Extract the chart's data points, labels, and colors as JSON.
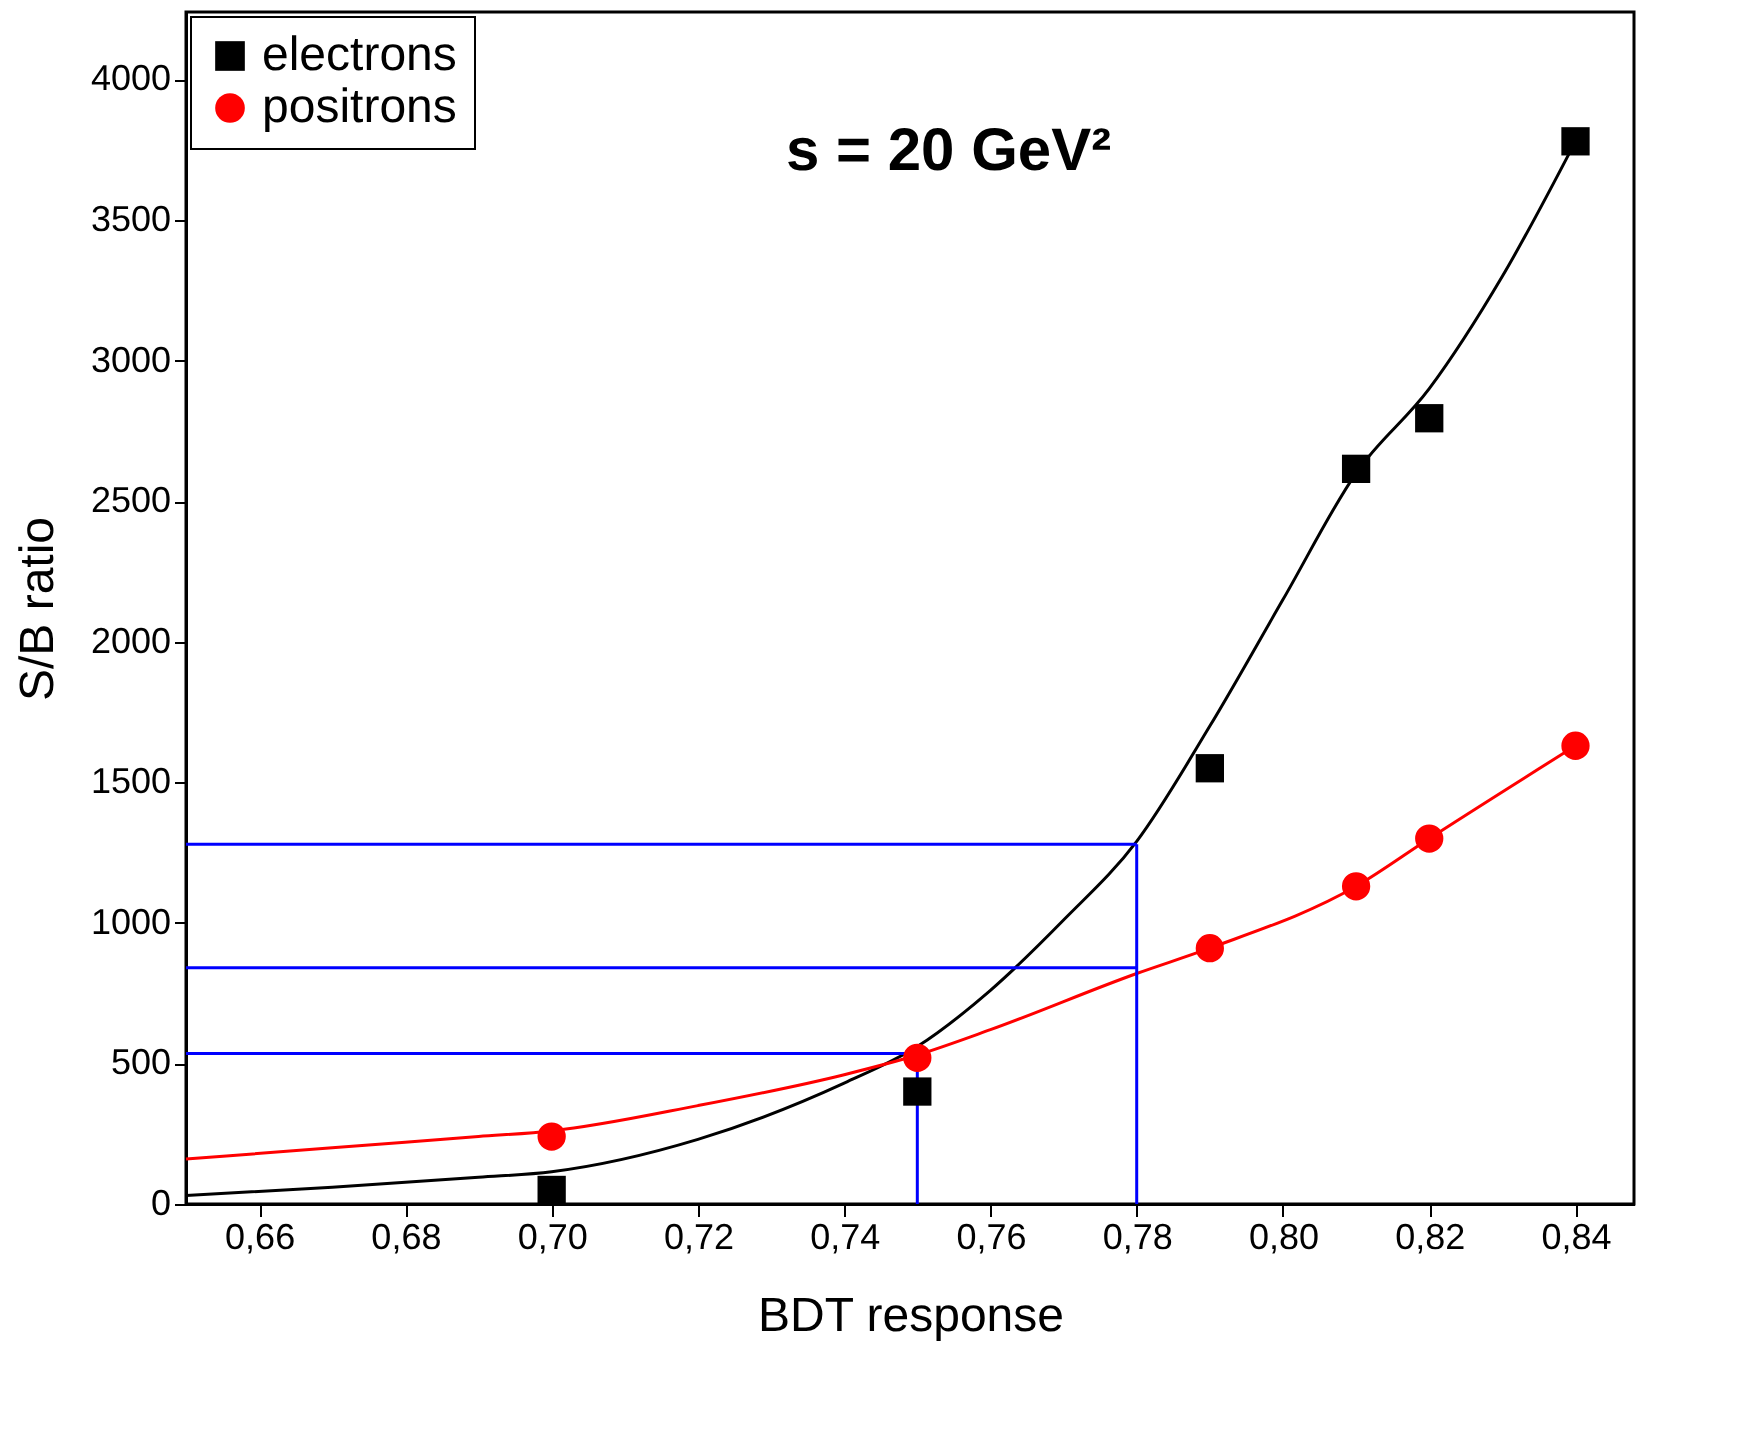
{
  "chart_data": {
    "type": "scatter",
    "xlabel": "BDT response",
    "ylabel": "S/B ratio",
    "annotations": [
      "s = 20 GeV²"
    ],
    "xlim": [
      0.65,
      0.848
    ],
    "ylim": [
      0,
      4240
    ],
    "xticks": [
      {
        "value": 0.66,
        "label": "0,66"
      },
      {
        "value": 0.68,
        "label": "0,68"
      },
      {
        "value": 0.7,
        "label": "0,70"
      },
      {
        "value": 0.72,
        "label": "0,72"
      },
      {
        "value": 0.74,
        "label": "0,74"
      },
      {
        "value": 0.76,
        "label": "0,76"
      },
      {
        "value": 0.78,
        "label": "0,78"
      },
      {
        "value": 0.8,
        "label": "0,80"
      },
      {
        "value": 0.82,
        "label": "0,82"
      },
      {
        "value": 0.84,
        "label": "0,84"
      }
    ],
    "yticks": [
      0,
      500,
      1000,
      1500,
      2000,
      2500,
      3000,
      3500,
      4000
    ],
    "grid": false,
    "legend": "top left",
    "series": [
      {
        "name": "electrons",
        "marker": "square",
        "color": "#000000",
        "x": [
          0.7,
          0.75,
          0.79,
          0.81,
          0.82,
          0.84
        ],
        "values": [
          50,
          400,
          1550,
          2615,
          2795,
          3780
        ]
      },
      {
        "name": "positrons",
        "marker": "circle",
        "color": "#ff0000",
        "x": [
          0.7,
          0.75,
          0.79,
          0.81,
          0.82,
          0.84
        ],
        "values": [
          240,
          520,
          910,
          1130,
          1300,
          1630
        ]
      },
      {
        "type": "line",
        "color": "#000000",
        "x": [
          0.65,
          0.67,
          0.69,
          0.7,
          0.72,
          0.74,
          0.75,
          0.76,
          0.77,
          0.78,
          0.79,
          0.8,
          0.81,
          0.82,
          0.83,
          0.84
        ],
        "values": [
          30,
          60,
          95,
          115,
          230,
          430,
          560,
          760,
          1010,
          1290,
          1700,
          2150,
          2600,
          2900,
          3300,
          3780
        ]
      },
      {
        "type": "line",
        "color": "#ff0000",
        "x": [
          0.65,
          0.67,
          0.69,
          0.7,
          0.72,
          0.74,
          0.75,
          0.76,
          0.78,
          0.79,
          0.81,
          0.82,
          0.84
        ],
        "values": [
          160,
          200,
          240,
          260,
          350,
          460,
          530,
          620,
          820,
          910,
          1130,
          1300,
          1630
        ]
      }
    ],
    "ref_lines": [
      {
        "axis": "y",
        "value": 1280,
        "color": "#0000ff"
      },
      {
        "axis": "y",
        "value": 840,
        "color": "#0000ff"
      },
      {
        "axis": "y",
        "value": 535,
        "color": "#0000ff"
      },
      {
        "axis": "x",
        "value": 0.75,
        "color": "#0000ff"
      },
      {
        "axis": "x",
        "value": 0.78,
        "color": "#0000ff"
      }
    ]
  }
}
